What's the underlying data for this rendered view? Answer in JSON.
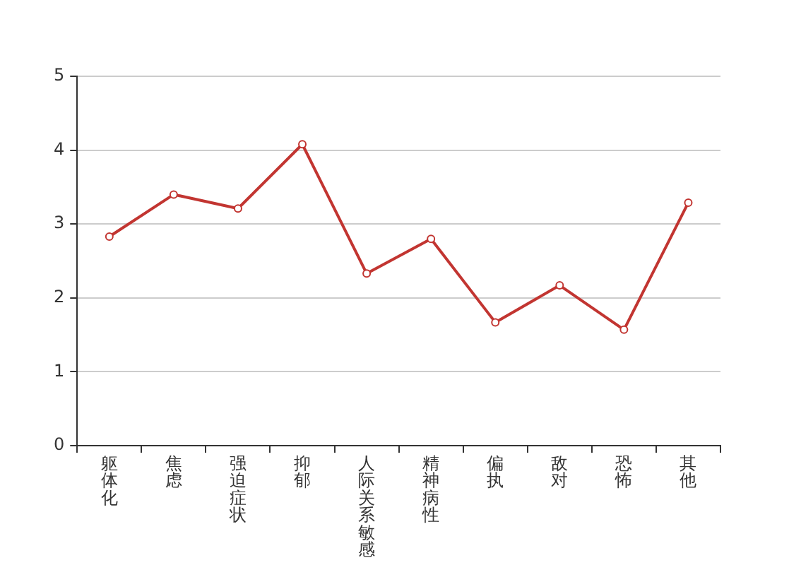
{
  "chart_data": {
    "type": "line",
    "categories": [
      "躯体化",
      "焦虑",
      "强迫症状",
      "抑郁",
      "人际关系敏感",
      "精神病性",
      "偏执",
      "敌对",
      "恐怖",
      "其他"
    ],
    "series": [
      {
        "color": "#c23531",
        "values": [
          2.83,
          3.4,
          3.21,
          4.08,
          2.33,
          2.8,
          1.67,
          2.17,
          1.57,
          3.29
        ]
      }
    ],
    "ylim": [
      0,
      5
    ],
    "yticks": [
      0,
      1,
      2,
      3,
      4,
      5
    ],
    "grid": "y",
    "marker": "circle",
    "line_style": "solid"
  }
}
